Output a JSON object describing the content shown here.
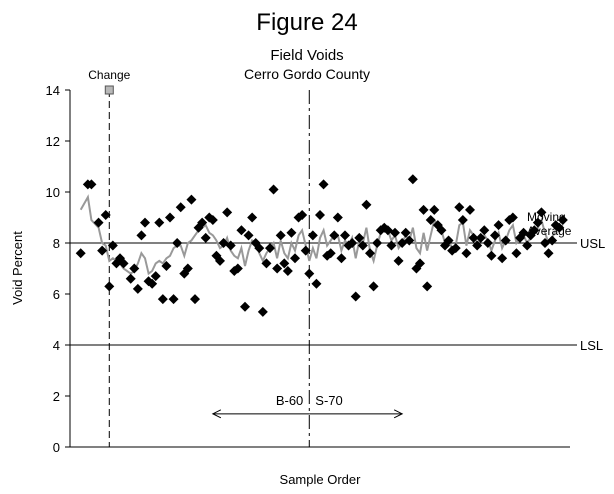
{
  "chart_data": {
    "type": "scatter",
    "figure_label": "Figure 24",
    "title": "Field Voids",
    "subtitle": "Cerro Gordo County",
    "xlabel": "Sample Order",
    "ylabel": "Void Percent",
    "xlim": [
      0,
      140
    ],
    "ylim": [
      0,
      14
    ],
    "yticks": [
      0,
      2,
      4,
      6,
      8,
      10,
      12,
      14
    ],
    "grid": false,
    "series": [
      {
        "kind": "points",
        "marker": "diamond",
        "color": "#000000",
        "x": [
          3,
          5,
          6,
          8,
          9,
          10,
          11,
          12,
          13,
          14,
          15,
          17,
          18,
          19,
          20,
          21,
          22,
          23,
          24,
          25,
          26,
          27,
          28,
          29,
          30,
          31,
          32,
          33,
          34,
          35,
          36,
          37,
          38,
          39,
          40,
          41,
          42,
          43,
          44,
          45,
          46,
          47,
          48,
          49,
          50,
          51,
          52,
          53,
          54,
          55,
          56,
          57,
          58,
          59,
          60,
          61,
          62,
          63,
          64,
          65,
          66,
          67,
          68,
          69,
          70,
          71,
          72,
          73,
          74,
          75,
          76,
          77,
          78,
          79,
          80,
          81,
          82,
          83,
          84,
          85,
          86,
          87,
          88,
          89,
          90,
          91,
          92,
          93,
          94,
          95,
          96,
          97,
          98,
          99,
          100,
          101,
          102,
          103,
          104,
          105,
          106,
          107,
          108,
          109,
          110,
          111,
          112,
          113,
          114,
          115,
          116,
          117,
          118,
          119,
          120,
          121,
          122,
          123,
          124,
          125,
          126,
          127,
          128,
          129,
          130,
          131,
          132,
          133,
          134,
          135,
          136,
          137,
          138
        ],
        "y": [
          7.6,
          10.3,
          10.3,
          8.8,
          7.7,
          9.1,
          6.3,
          7.9,
          7.2,
          7.4,
          7.2,
          6.6,
          7.0,
          6.2,
          8.3,
          8.8,
          6.5,
          6.4,
          6.7,
          8.8,
          5.8,
          7.1,
          9.0,
          5.8,
          8.0,
          9.4,
          6.8,
          7.0,
          9.7,
          5.8,
          8.6,
          8.8,
          8.2,
          9.0,
          8.9,
          7.5,
          7.3,
          8.0,
          9.2,
          7.9,
          6.9,
          7.0,
          8.5,
          5.5,
          8.3,
          9.0,
          8.0,
          7.8,
          5.3,
          7.2,
          7.8,
          10.1,
          7.0,
          8.3,
          7.2,
          6.9,
          8.4,
          7.4,
          9.0,
          9.1,
          7.7,
          6.8,
          8.3,
          6.4,
          9.1,
          10.3,
          7.5,
          7.6,
          8.3,
          9.0,
          7.4,
          8.3,
          7.9,
          8.0,
          5.9,
          8.2,
          7.9,
          9.5,
          7.6,
          6.3,
          8.0,
          8.5,
          8.6,
          8.5,
          7.9,
          8.4,
          7.3,
          8.0,
          8.4,
          8.1,
          10.5,
          7.0,
          7.2,
          9.3,
          6.3,
          8.9,
          9.3,
          8.7,
          8.5,
          7.9,
          8.1,
          7.7,
          7.8,
          9.4,
          8.9,
          7.6,
          9.3,
          8.2,
          7.9,
          8.2,
          8.5,
          8.0,
          7.5,
          8.3,
          8.7,
          7.4,
          8.1,
          8.9,
          9.0,
          7.6,
          8.2,
          8.4,
          7.9,
          8.3,
          8.5,
          8.8,
          9.2,
          8.0,
          7.6,
          8.1,
          8.7,
          8.6,
          8.9
        ]
      },
      {
        "name": "Moving Average",
        "kind": "line",
        "color": "#999999",
        "x": [
          3,
          5,
          6,
          8,
          9,
          10,
          11,
          12,
          13,
          14,
          15,
          17,
          18,
          19,
          20,
          21,
          22,
          23,
          24,
          25,
          26,
          27,
          28,
          29,
          30,
          31,
          32,
          33,
          34,
          35,
          36,
          37,
          38,
          39,
          40,
          41,
          42,
          43,
          44,
          45,
          46,
          47,
          48,
          49,
          50,
          51,
          52,
          53,
          54,
          55,
          56,
          57,
          58,
          59,
          60,
          61,
          62,
          63,
          64,
          65,
          66,
          67,
          68,
          69,
          70,
          71,
          72,
          73,
          74,
          75,
          76,
          77,
          78,
          79,
          80,
          81,
          82,
          83,
          84,
          85,
          86,
          87,
          88,
          89,
          90,
          91,
          92,
          93,
          94,
          95,
          96,
          97,
          98,
          99,
          100,
          101,
          102,
          103,
          104,
          105,
          106,
          107,
          108,
          109,
          110,
          111,
          112,
          113,
          114,
          115,
          116,
          117,
          118,
          119,
          120,
          121,
          122,
          123,
          124,
          125,
          126,
          127,
          128,
          129,
          130,
          131,
          132,
          133,
          134,
          135,
          136,
          137,
          138
        ],
        "y": [
          9.3,
          9.8,
          8.9,
          8.6,
          8.0,
          7.9,
          7.3,
          7.4,
          7.3,
          7.2,
          7.0,
          6.8,
          6.9,
          7.2,
          7.6,
          7.4,
          6.8,
          6.9,
          7.2,
          7.3,
          7.2,
          7.4,
          7.5,
          7.8,
          7.9,
          7.9,
          7.5,
          8.0,
          8.1,
          8.3,
          8.5,
          8.6,
          8.7,
          8.4,
          8.3,
          8.1,
          7.8,
          7.9,
          8.2,
          7.7,
          7.5,
          7.4,
          7.8,
          7.1,
          7.7,
          8.1,
          8.0,
          7.6,
          7.3,
          7.6,
          7.8,
          8.0,
          7.4,
          8.1,
          7.6,
          7.4,
          8.0,
          7.7,
          8.3,
          8.5,
          7.9,
          7.3,
          7.8,
          7.4,
          8.2,
          8.5,
          7.9,
          8.1,
          8.3,
          8.3,
          7.7,
          8.1,
          7.9,
          8.2,
          7.4,
          8.1,
          8.0,
          8.6,
          7.7,
          7.3,
          7.9,
          8.4,
          8.6,
          8.5,
          8.1,
          8.3,
          7.8,
          8.0,
          8.3,
          8.1,
          8.6,
          7.8,
          7.6,
          8.4,
          7.7,
          8.3,
          8.9,
          8.7,
          8.5,
          8.0,
          8.1,
          7.8,
          7.9,
          8.7,
          8.8,
          7.9,
          8.5,
          8.3,
          8.0,
          8.1,
          8.3,
          8.1,
          7.7,
          8.1,
          8.4,
          7.8,
          8.1,
          8.5,
          8.7,
          8.0,
          8.2,
          8.3,
          8.0,
          8.2,
          8.4,
          8.6,
          8.9,
          8.4,
          8.0,
          8.2,
          8.5,
          8.6,
          8.7
        ]
      }
    ],
    "reference_lines": [
      {
        "label": "USL",
        "y": 8
      },
      {
        "label": "LSL",
        "y": 4
      }
    ],
    "change_marker": {
      "label": "Change",
      "x": 11,
      "y": 14
    },
    "divider_x": 67,
    "annotations": [
      {
        "text": "B-60",
        "side": "left",
        "arrow_from_x": 40,
        "arrow_to_x": 67,
        "y": 1.3
      },
      {
        "text": "S-70",
        "side": "right",
        "arrow_from_x": 67,
        "arrow_to_x": 93,
        "y": 1.3
      }
    ],
    "series_label_lines": [
      "Moving",
      "Average"
    ]
  }
}
